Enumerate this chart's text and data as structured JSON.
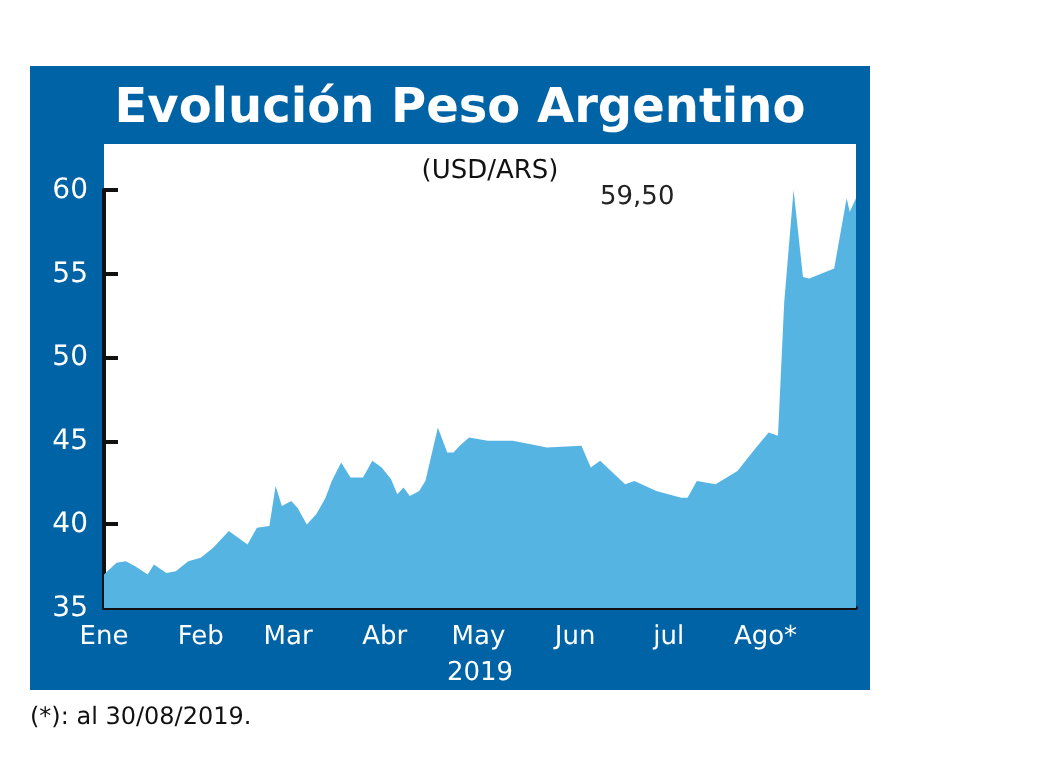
{
  "chart_data": {
    "type": "area",
    "title": "Evolución Peso Argentino",
    "subtitle": "(USD/ARS)",
    "xlabel": "2019",
    "x": [
      "2019-01-01",
      "2019-01-05",
      "2019-01-08",
      "2019-01-11",
      "2019-01-15",
      "2019-01-17",
      "2019-01-21",
      "2019-01-24",
      "2019-01-28",
      "2019-02-01",
      "2019-02-05",
      "2019-02-10",
      "2019-02-13",
      "2019-02-16",
      "2019-02-19",
      "2019-02-23",
      "2019-02-25",
      "2019-02-27",
      "2019-03-02",
      "2019-03-04",
      "2019-03-07",
      "2019-03-10",
      "2019-03-13",
      "2019-03-15",
      "2019-03-18",
      "2019-03-21",
      "2019-03-25",
      "2019-03-28",
      "2019-03-31",
      "2019-04-03",
      "2019-04-05",
      "2019-04-07",
      "2019-04-09",
      "2019-04-12",
      "2019-04-14",
      "2019-04-18",
      "2019-04-21",
      "2019-04-23",
      "2019-04-25",
      "2019-04-28",
      "2019-05-04",
      "2019-05-12",
      "2019-05-23",
      "2019-06-03",
      "2019-06-06",
      "2019-06-09",
      "2019-06-17",
      "2019-06-20",
      "2019-06-27",
      "2019-07-05",
      "2019-07-07",
      "2019-07-10",
      "2019-07-16",
      "2019-07-23",
      "2019-07-29",
      "2019-08-02",
      "2019-08-05",
      "2019-08-07",
      "2019-08-10",
      "2019-08-13",
      "2019-08-15",
      "2019-08-23",
      "2019-08-27",
      "2019-08-28",
      "2019-08-30"
    ],
    "series": [
      {
        "color": "#56b4e3",
        "values": [
          37.0,
          37.7,
          37.8,
          37.5,
          37.0,
          37.6,
          37.1,
          37.2,
          37.8,
          38.0,
          38.6,
          39.6,
          39.2,
          38.8,
          39.8,
          39.9,
          42.3,
          41.1,
          41.4,
          41.0,
          40.0,
          40.6,
          41.6,
          42.6,
          43.7,
          42.8,
          42.8,
          43.8,
          43.4,
          42.7,
          41.8,
          42.2,
          41.7,
          42.0,
          42.6,
          45.8,
          44.3,
          44.3,
          44.7,
          45.2,
          45.0,
          45.0,
          44.6,
          44.7,
          43.4,
          43.8,
          42.4,
          42.6,
          42.0,
          41.6,
          41.6,
          42.6,
          42.4,
          43.2,
          44.6,
          45.5,
          45.3,
          53.3,
          60.0,
          54.8,
          54.7,
          55.3,
          59.5,
          58.7,
          59.5
        ]
      }
    ],
    "xlim": [
      "2019-01-01",
      "2019-08-30"
    ],
    "xticks": [
      {
        "value": "2019-01-01",
        "label": "Ene"
      },
      {
        "value": "2019-02-01",
        "label": "Feb"
      },
      {
        "value": "2019-03-01",
        "label": "Mar"
      },
      {
        "value": "2019-04-01",
        "label": "Abr"
      },
      {
        "value": "2019-05-01",
        "label": "May"
      },
      {
        "value": "2019-06-01",
        "label": "Jun"
      },
      {
        "value": "2019-07-01",
        "label": "jul"
      },
      {
        "value": "2019-08-01",
        "label": "Ago*"
      }
    ],
    "ylim": [
      35,
      60
    ],
    "yticks": [
      35,
      40,
      45,
      50,
      55,
      60
    ],
    "grid": false,
    "marker": "none",
    "annotations": [
      "59,50",
      "(*): al 30/08/2019."
    ]
  }
}
